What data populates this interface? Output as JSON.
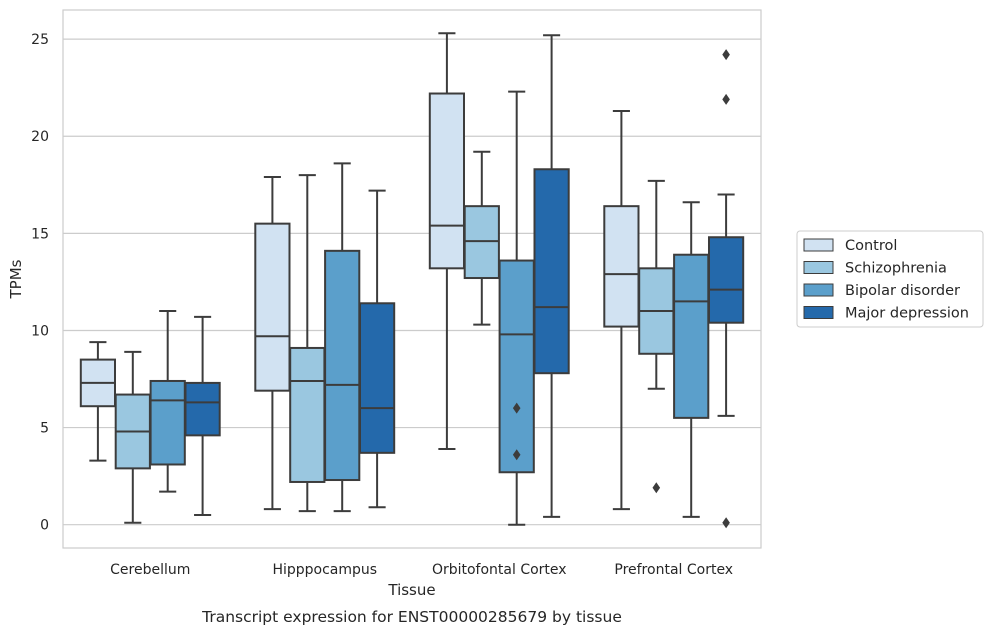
{
  "chart_data": {
    "type": "boxplot",
    "caption": "Transcript expression for ENST00000285679 by tissue",
    "xlabel": "Tissue",
    "ylabel": "TPMs",
    "ylim": [
      -1.2,
      26.5
    ],
    "yticks": [
      "0",
      "5",
      "10",
      "15",
      "20",
      "25"
    ],
    "ytick_values": [
      0,
      5,
      10,
      15,
      20,
      25
    ],
    "grid": "horizontal",
    "legend_position": "right",
    "categories": [
      "Cerebellum",
      "Hipppocampus",
      "Orbitofontal Cortex",
      "Prefrontal Cortex"
    ],
    "series": [
      {
        "name": "Control",
        "color": "#d1e2f2",
        "boxes": [
          {
            "whislo": 3.3,
            "q1": 6.1,
            "med": 7.3,
            "q3": 8.5,
            "whishi": 9.4,
            "fliers": []
          },
          {
            "whislo": 0.8,
            "q1": 6.9,
            "med": 9.7,
            "q3": 15.5,
            "whishi": 17.9,
            "fliers": []
          },
          {
            "whislo": 3.9,
            "q1": 13.2,
            "med": 15.4,
            "q3": 22.2,
            "whishi": 25.3,
            "fliers": []
          },
          {
            "whislo": 0.8,
            "q1": 10.2,
            "med": 12.9,
            "q3": 16.4,
            "whishi": 21.3,
            "fliers": []
          }
        ]
      },
      {
        "name": "Schizophrenia",
        "color": "#9ac7e0",
        "boxes": [
          {
            "whislo": 0.1,
            "q1": 2.9,
            "med": 4.8,
            "q3": 6.7,
            "whishi": 8.9,
            "fliers": []
          },
          {
            "whislo": 0.7,
            "q1": 2.2,
            "med": 7.4,
            "q3": 9.1,
            "whishi": 18.0,
            "fliers": []
          },
          {
            "whislo": 10.3,
            "q1": 12.7,
            "med": 14.6,
            "q3": 16.4,
            "whishi": 19.2,
            "fliers": []
          },
          {
            "whislo": 7.0,
            "q1": 8.8,
            "med": 11.0,
            "q3": 13.2,
            "whishi": 17.7,
            "fliers": [
              1.9
            ]
          }
        ]
      },
      {
        "name": "Bipolar disorder",
        "color": "#5b9fcb",
        "boxes": [
          {
            "whislo": 1.7,
            "q1": 3.1,
            "med": 6.4,
            "q3": 7.4,
            "whishi": 11.0,
            "fliers": []
          },
          {
            "whislo": 0.7,
            "q1": 2.3,
            "med": 7.2,
            "q3": 14.1,
            "whishi": 18.6,
            "fliers": []
          },
          {
            "whislo": 0.0,
            "q1": 2.7,
            "med": 9.8,
            "q3": 13.6,
            "whishi": 22.3,
            "fliers": [
              6.0,
              3.6
            ]
          },
          {
            "whislo": 0.4,
            "q1": 5.5,
            "med": 11.5,
            "q3": 13.9,
            "whishi": 16.6,
            "fliers": []
          }
        ]
      },
      {
        "name": "Major depression",
        "color": "#2469ab",
        "boxes": [
          {
            "whislo": 0.5,
            "q1": 4.6,
            "med": 6.3,
            "q3": 7.3,
            "whishi": 10.7,
            "fliers": []
          },
          {
            "whislo": 0.9,
            "q1": 3.7,
            "med": 6.0,
            "q3": 11.4,
            "whishi": 17.2,
            "fliers": []
          },
          {
            "whislo": 0.4,
            "q1": 7.8,
            "med": 11.2,
            "q3": 18.3,
            "whishi": 25.2,
            "fliers": []
          },
          {
            "whislo": 5.6,
            "q1": 10.4,
            "med": 12.1,
            "q3": 14.8,
            "whishi": 17.0,
            "fliers": [
              24.2,
              21.9,
              0.1
            ]
          }
        ]
      }
    ]
  }
}
